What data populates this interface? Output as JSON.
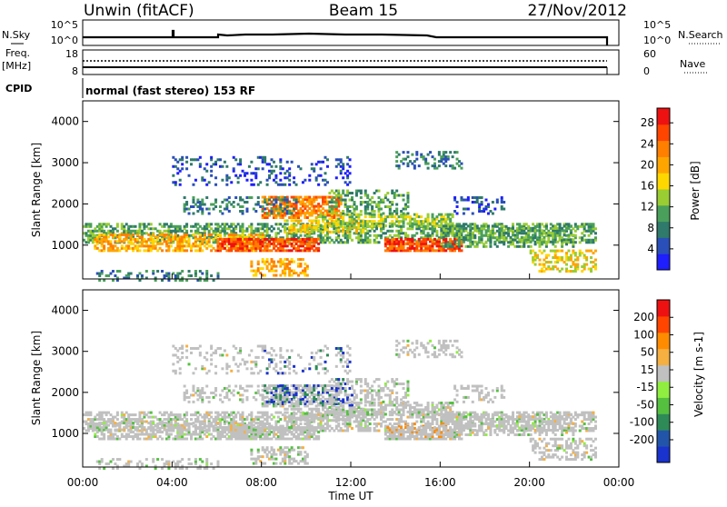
{
  "header": {
    "station": "Unwin (fitACF)",
    "beam": "Beam 15",
    "date": "27/Nov/2012"
  },
  "noise_panel": {
    "left_label": "N.Sky",
    "right_label": "N.Search",
    "left_ticks": [
      "10^5",
      "10^0"
    ],
    "right_ticks": [
      "10^5",
      "10^0"
    ]
  },
  "freq_panel": {
    "left_label_1": "Freq.",
    "left_label_2": "[MHz]",
    "right_label": "Nave",
    "left_ticks": [
      "18",
      "8"
    ],
    "right_ticks": [
      "60",
      "0"
    ]
  },
  "cpid": {
    "label": "CPID",
    "value": "normal (fast stereo) 153 RF"
  },
  "chart_data": [
    {
      "type": "heatmap",
      "name": "power",
      "ylabel": "Slant Range [km]",
      "ylim": [
        180,
        4500
      ],
      "yticks": [
        "1000",
        "2000",
        "3000",
        "4000"
      ],
      "xlim": [
        0,
        24
      ],
      "colorbar": {
        "label": "Power [dB]",
        "ticks": [
          "4",
          "8",
          "12",
          "16",
          "20",
          "24",
          "28"
        ],
        "colors": [
          "#1e1eff",
          "#2a4fb8",
          "#2f7a6a",
          "#4aa05a",
          "#9acd32",
          "#ffd700",
          "#ffa500",
          "#ff7f00",
          "#ff4500",
          "#ee1111"
        ]
      }
    },
    {
      "type": "heatmap",
      "name": "velocity",
      "ylabel": "Slant Range [km]",
      "ylim": [
        180,
        4500
      ],
      "yticks": [
        "1000",
        "2000",
        "3000",
        "4000"
      ],
      "xlim": [
        0,
        24
      ],
      "xlabel": "Time UT",
      "xticks": [
        "00:00",
        "04:00",
        "08:00",
        "12:00",
        "16:00",
        "20:00",
        "00:00"
      ],
      "colorbar": {
        "label": "Velocity [m s-1]",
        "ticks": [
          "200",
          "100",
          "50",
          "15",
          "-15",
          "-50",
          "-100",
          "-200"
        ],
        "colors": [
          "#1a33cc",
          "#2255aa",
          "#2e8b57",
          "#55c040",
          "#90ee40",
          "#c0c0c0",
          "#f5b041",
          "#ff8c00",
          "#ff4500",
          "#ee1111"
        ]
      }
    }
  ]
}
